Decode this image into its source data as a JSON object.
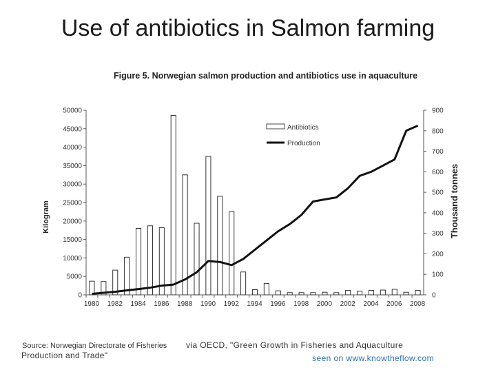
{
  "slide": {
    "title": "Use of antibiotics in Salmon farming",
    "figure_title": "Figure 5. Norwegian salmon production and antibiotics use in aquaculture",
    "source_text": "Source: Norwegian Directorate of Fisheries",
    "source_continued": "Production and Trade\"",
    "via_text": "via OECD, \"Green Growth in Fisheries and Aquaculture",
    "seen_on": "seen on www.knowtheflow.com"
  },
  "chart_data": {
    "type": "bar+line",
    "title": "Figure 5. Norwegian salmon production and antibiotics use in aquaculture",
    "xlabel": "",
    "ylabel": "Kilogram",
    "y2label": "Thousand tonnes",
    "ylim": [
      0,
      50000
    ],
    "y2lim": [
      0,
      900
    ],
    "yticks": [
      0,
      5000,
      10000,
      15000,
      20000,
      25000,
      30000,
      35000,
      40000,
      45000,
      50000
    ],
    "y2ticks": [
      0,
      100,
      200,
      300,
      400,
      500,
      600,
      700,
      800,
      900
    ],
    "categories": [
      1980,
      1981,
      1982,
      1983,
      1984,
      1985,
      1986,
      1987,
      1988,
      1989,
      1990,
      1991,
      1992,
      1993,
      1994,
      1995,
      1996,
      1997,
      1998,
      1999,
      2000,
      2001,
      2002,
      2003,
      2004,
      2005,
      2006,
      2007,
      2008
    ],
    "x_tick_labels": [
      "1980",
      "1982",
      "1984",
      "1986",
      "1988",
      "1990",
      "1992",
      "1994",
      "1996",
      "1998",
      "2000",
      "2002",
      "2004",
      "2006",
      "2008"
    ],
    "legend": [
      "Antibiotics",
      "Production"
    ],
    "legend_position": "top-right",
    "series": [
      {
        "name": "Antibiotics",
        "type": "bar",
        "axis": "left",
        "values": [
          3700,
          3600,
          6700,
          10200,
          18000,
          18700,
          18200,
          48600,
          32500,
          19400,
          37500,
          26700,
          22500,
          6200,
          1400,
          3100,
          1100,
          600,
          600,
          600,
          700,
          600,
          1200,
          1000,
          1200,
          1300,
          1500,
          700,
          1200
        ]
      },
      {
        "name": "Production",
        "type": "line",
        "axis": "right",
        "values": [
          5,
          10,
          15,
          22,
          28,
          35,
          45,
          50,
          75,
          110,
          165,
          160,
          145,
          175,
          220,
          265,
          310,
          345,
          390,
          455,
          465,
          475,
          520,
          580,
          600,
          630,
          660,
          800,
          825
        ]
      }
    ]
  }
}
